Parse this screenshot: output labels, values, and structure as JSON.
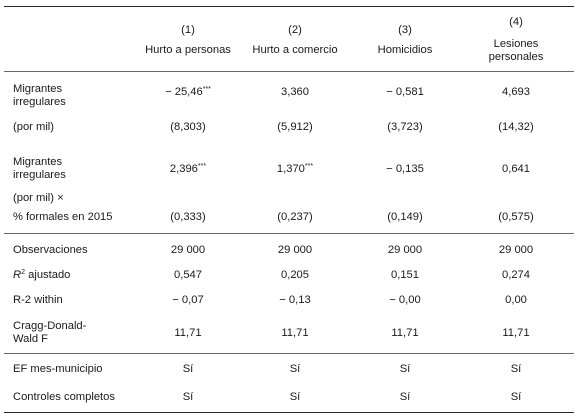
{
  "columns": [
    {
      "num": "(1)",
      "label": "Hurto a personas"
    },
    {
      "num": "(2)",
      "label": "Hurto a comercio"
    },
    {
      "num": "(3)",
      "label": "Homicidios"
    },
    {
      "num": "(4)",
      "label_line1": "Lesiones",
      "label_line2": "personales"
    }
  ],
  "rows": {
    "migrantes": {
      "label_line1": "Migrantes",
      "label_line2": "irregulares",
      "label_line3": "(por mil)",
      "coef": [
        "− 25,46",
        "3,360",
        "− 0,581",
        "4,693"
      ],
      "coef_stars": [
        "***",
        "",
        "",
        ""
      ],
      "se": [
        "(8,303)",
        "(5,912)",
        "(3,723)",
        "(14,32)"
      ]
    },
    "interaccion": {
      "label_line1": "Migrantes",
      "label_line2": "irregulares",
      "label_line3": "(por mil) ×",
      "label_line4": "% formales en 2015",
      "coef": [
        "2,396",
        "1,370",
        "− 0,135",
        "0,641"
      ],
      "coef_stars": [
        "***",
        "***",
        "",
        ""
      ],
      "se": [
        "(0,333)",
        "(0,237)",
        "(0,149)",
        "(0,575)"
      ]
    },
    "observaciones": {
      "label": "Observaciones",
      "values": [
        "29 000",
        "29 000",
        "29 000",
        "29 000"
      ]
    },
    "r2": {
      "label_base": "R",
      "label_sup": "2",
      "label_rest": " ajustado",
      "values": [
        "0,547",
        "0,205",
        "0,151",
        "0,274"
      ]
    },
    "r2within": {
      "label": "R-2 within",
      "values": [
        "− 0,07",
        "− 0,13",
        "− 0,00",
        "0,00"
      ]
    },
    "cragg": {
      "label_line1": "Cragg-Donald-",
      "label_line2": "Wald F",
      "values": [
        "11,71",
        "11,71",
        "11,71",
        "11,71"
      ]
    },
    "ef": {
      "label": "EF mes-municipio",
      "values": [
        "Sí",
        "Sí",
        "Sí",
        "Sí"
      ]
    },
    "controles": {
      "label": "Controles completos",
      "values": [
        "Sí",
        "Sí",
        "Sí",
        "Sí"
      ]
    }
  }
}
